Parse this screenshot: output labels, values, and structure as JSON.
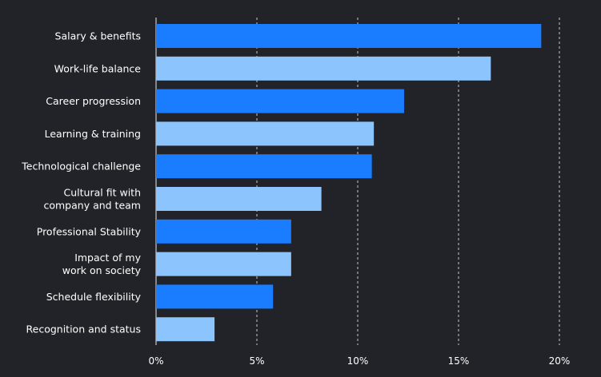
{
  "chart_data": {
    "type": "bar",
    "orientation": "horizontal",
    "categories": [
      "Salary & benefits",
      "Work-life balance",
      "Career progression",
      "Learning & training",
      "Technological challenge",
      "Cultural fit with\ncompany and team",
      "Professional Stability",
      "Impact of my\nwork on society",
      "Schedule flexibility",
      "Recognition and status"
    ],
    "values": [
      19.1,
      16.6,
      12.3,
      10.8,
      10.7,
      8.2,
      6.7,
      6.7,
      5.8,
      2.9
    ],
    "xlim": [
      0,
      20
    ],
    "xticks": [
      0,
      5,
      10,
      15,
      20
    ],
    "xtick_labels": [
      "0%",
      "5%",
      "10%",
      "15%",
      "20%"
    ],
    "grid": "vertical dashed",
    "title": "",
    "xlabel": "",
    "ylabel": "",
    "colors": {
      "background": "#212328",
      "bar_dark": "#1a7cff",
      "bar_light": "#8cc4fd",
      "grid": "#ffffff",
      "text": "#ffffff"
    }
  }
}
